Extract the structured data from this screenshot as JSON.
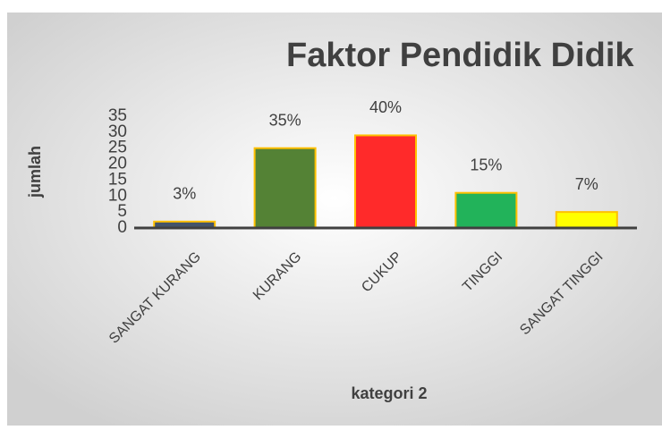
{
  "chart_data": {
    "type": "bar",
    "title": "Faktor Pendidik Didik",
    "x_label": "kategori 2",
    "y_label": "jumlah",
    "categories": [
      "SANGAT KURANG",
      "KURANG",
      "CUKUP",
      "TINGGI",
      "SANGAT TINGGI"
    ],
    "values": [
      2,
      25,
      29,
      11,
      5
    ],
    "value_labels": [
      "3%",
      "35%",
      "40%",
      "15%",
      "7%"
    ],
    "colors": [
      "#44546a",
      "#548235",
      "#ff2a2a",
      "#22b35a",
      "#ffff00"
    ],
    "ylim": [
      0,
      35
    ],
    "yticks": [
      0,
      5,
      10,
      15,
      20,
      25,
      30,
      35
    ],
    "grid": false
  }
}
